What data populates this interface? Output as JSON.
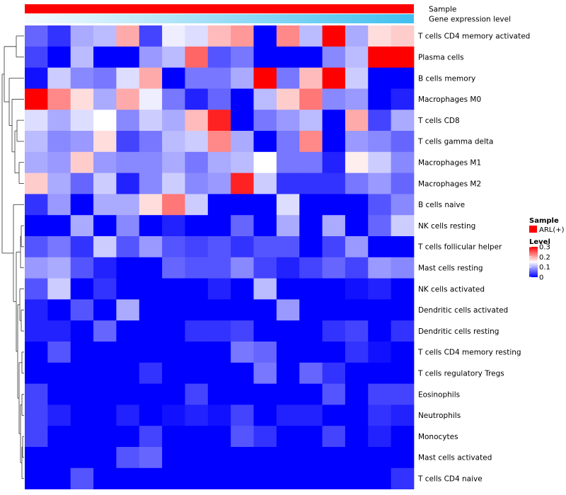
{
  "chart_data": {
    "type": "heatmap",
    "annotations": [
      {
        "label": "Sample"
      },
      {
        "label": "Gene expression level"
      }
    ],
    "sample_legend": {
      "title": "Sample",
      "entry": "ARL(+)",
      "color": "#ff0000"
    },
    "level_legend": {
      "title": "Level",
      "ticks": [
        "0.3",
        "0.2",
        "0.1",
        "0"
      ],
      "tick_values": [
        0.3,
        0.2,
        0.1,
        0
      ]
    },
    "color_scale": {
      "low": "#0000ff",
      "mid": "#ffffff",
      "high": "#ff0000",
      "min": 0,
      "mid_value": 0.15,
      "max": 0.3
    },
    "expression_gradient": {
      "from": "#f7fbfe",
      "to": "#3fbff0"
    },
    "rows": [
      "T cells CD4 memory activated",
      "Plasma cells",
      "B cells memory",
      "Macrophages M0",
      "T cells CD8",
      "T cells gamma delta",
      "Macrophages M1",
      "Macrophages M2",
      "B cells naive",
      "NK cells resting",
      "T cells follicular helper",
      "Mast cells resting",
      "NK cells activated",
      "Dendritic cells activated",
      "Dendritic cells resting",
      "T cells CD4 memory resting",
      "T cells regulatory  Tregs",
      "Eosinophils",
      "Neutrophils",
      "Monocytes",
      "Mast cells activated",
      "T cells CD4 naive"
    ],
    "values": [
      [
        0.06,
        0.03,
        0.1,
        0.11,
        0.2,
        0.04,
        0.14,
        0.13,
        0.19,
        0.21,
        0.0,
        0.22,
        0.11,
        0.3,
        0.1,
        0.17,
        0.18
      ],
      [
        0.04,
        0.0,
        0.11,
        0.0,
        0.0,
        0.09,
        0.11,
        0.24,
        0.05,
        0.07,
        0.0,
        0.0,
        0.0,
        0.08,
        0.11,
        0.31,
        0.32
      ],
      [
        0.01,
        0.12,
        0.08,
        0.07,
        0.13,
        0.2,
        0.0,
        0.07,
        0.07,
        0.1,
        0.31,
        0.07,
        0.19,
        0.31,
        0.12,
        0.0,
        0.0
      ],
      [
        0.31,
        0.22,
        0.17,
        0.1,
        0.2,
        0.14,
        0.07,
        0.02,
        0.06,
        0.0,
        0.11,
        0.18,
        0.23,
        0.08,
        0.09,
        0.0,
        0.02
      ],
      [
        0.13,
        0.1,
        0.13,
        0.15,
        0.08,
        0.12,
        0.1,
        0.19,
        0.28,
        0.0,
        0.07,
        0.09,
        0.11,
        0.0,
        0.2,
        0.04,
        0.1
      ],
      [
        0.11,
        0.08,
        0.09,
        0.17,
        0.04,
        0.07,
        0.11,
        0.12,
        0.22,
        0.1,
        0.0,
        0.07,
        0.22,
        0.0,
        0.09,
        0.08,
        0.06
      ],
      [
        0.1,
        0.09,
        0.18,
        0.09,
        0.08,
        0.08,
        0.1,
        0.07,
        0.1,
        0.11,
        0.15,
        0.07,
        0.07,
        0.02,
        0.16,
        0.12,
        0.08
      ],
      [
        0.18,
        0.1,
        0.06,
        0.12,
        0.02,
        0.08,
        0.12,
        0.08,
        0.09,
        0.28,
        0.12,
        0.03,
        0.03,
        0.03,
        0.07,
        0.09,
        0.06
      ],
      [
        0.03,
        0.09,
        0.0,
        0.1,
        0.1,
        0.17,
        0.23,
        0.12,
        0.0,
        0.0,
        0.0,
        0.13,
        0.0,
        0.0,
        0.0,
        0.05,
        0.08
      ],
      [
        0.0,
        0.0,
        0.1,
        0.0,
        0.08,
        0.0,
        0.02,
        0.0,
        0.0,
        0.06,
        0.0,
        0.1,
        0.0,
        0.1,
        0.0,
        0.06,
        0.12
      ],
      [
        0.05,
        0.07,
        0.03,
        0.12,
        0.05,
        0.09,
        0.05,
        0.04,
        0.05,
        0.03,
        0.05,
        0.05,
        0.0,
        0.04,
        0.09,
        0.0,
        0.0
      ],
      [
        0.09,
        0.1,
        0.05,
        0.02,
        0.0,
        0.0,
        0.06,
        0.05,
        0.05,
        0.08,
        0.04,
        0.02,
        0.04,
        0.06,
        0.04,
        0.09,
        0.08
      ],
      [
        0.05,
        0.12,
        0.0,
        0.03,
        0.0,
        0.0,
        0.0,
        0.0,
        0.02,
        0.0,
        0.11,
        0.0,
        0.0,
        0.0,
        0.01,
        0.02,
        0.0
      ],
      [
        0.02,
        0.0,
        0.05,
        0.0,
        0.1,
        0.0,
        0.0,
        0.0,
        0.0,
        0.0,
        0.0,
        0.09,
        0.0,
        0.0,
        0.0,
        0.0,
        0.0
      ],
      [
        0.02,
        0.02,
        0.0,
        0.06,
        0.0,
        0.0,
        0.0,
        0.03,
        0.03,
        0.04,
        0.0,
        0.0,
        0.0,
        0.03,
        0.04,
        0.0,
        0.03
      ],
      [
        0.0,
        0.05,
        0.0,
        0.0,
        0.0,
        0.0,
        0.0,
        0.0,
        0.0,
        0.07,
        0.06,
        0.0,
        0.0,
        0.0,
        0.03,
        0.01,
        0.0
      ],
      [
        0.0,
        0.0,
        0.0,
        0.0,
        0.0,
        0.03,
        0.0,
        0.0,
        0.0,
        0.0,
        0.07,
        0.0,
        0.06,
        0.03,
        0.0,
        0.0,
        0.0
      ],
      [
        0.04,
        0.0,
        0.0,
        0.0,
        0.0,
        0.0,
        0.0,
        0.04,
        0.0,
        0.0,
        0.0,
        0.0,
        0.0,
        0.05,
        0.0,
        0.04,
        0.04
      ],
      [
        0.04,
        0.02,
        0.0,
        0.0,
        0.02,
        0.0,
        0.01,
        0.02,
        0.01,
        0.04,
        0.0,
        0.02,
        0.02,
        0.0,
        0.0,
        0.03,
        0.02
      ],
      [
        0.04,
        0.0,
        0.0,
        0.0,
        0.0,
        0.04,
        0.0,
        0.0,
        0.0,
        0.05,
        0.03,
        0.0,
        0.0,
        0.04,
        0.0,
        0.02,
        0.0
      ],
      [
        0.0,
        0.0,
        0.0,
        0.0,
        0.05,
        0.06,
        0.0,
        0.0,
        0.0,
        0.0,
        0.0,
        0.0,
        0.0,
        0.0,
        0.0,
        0.0,
        0.0
      ],
      [
        0.0,
        0.0,
        0.05,
        0.0,
        0.0,
        0.0,
        0.0,
        0.0,
        0.0,
        0.0,
        0.0,
        0.0,
        0.0,
        0.0,
        0.0,
        0.0,
        0.03
      ]
    ]
  }
}
